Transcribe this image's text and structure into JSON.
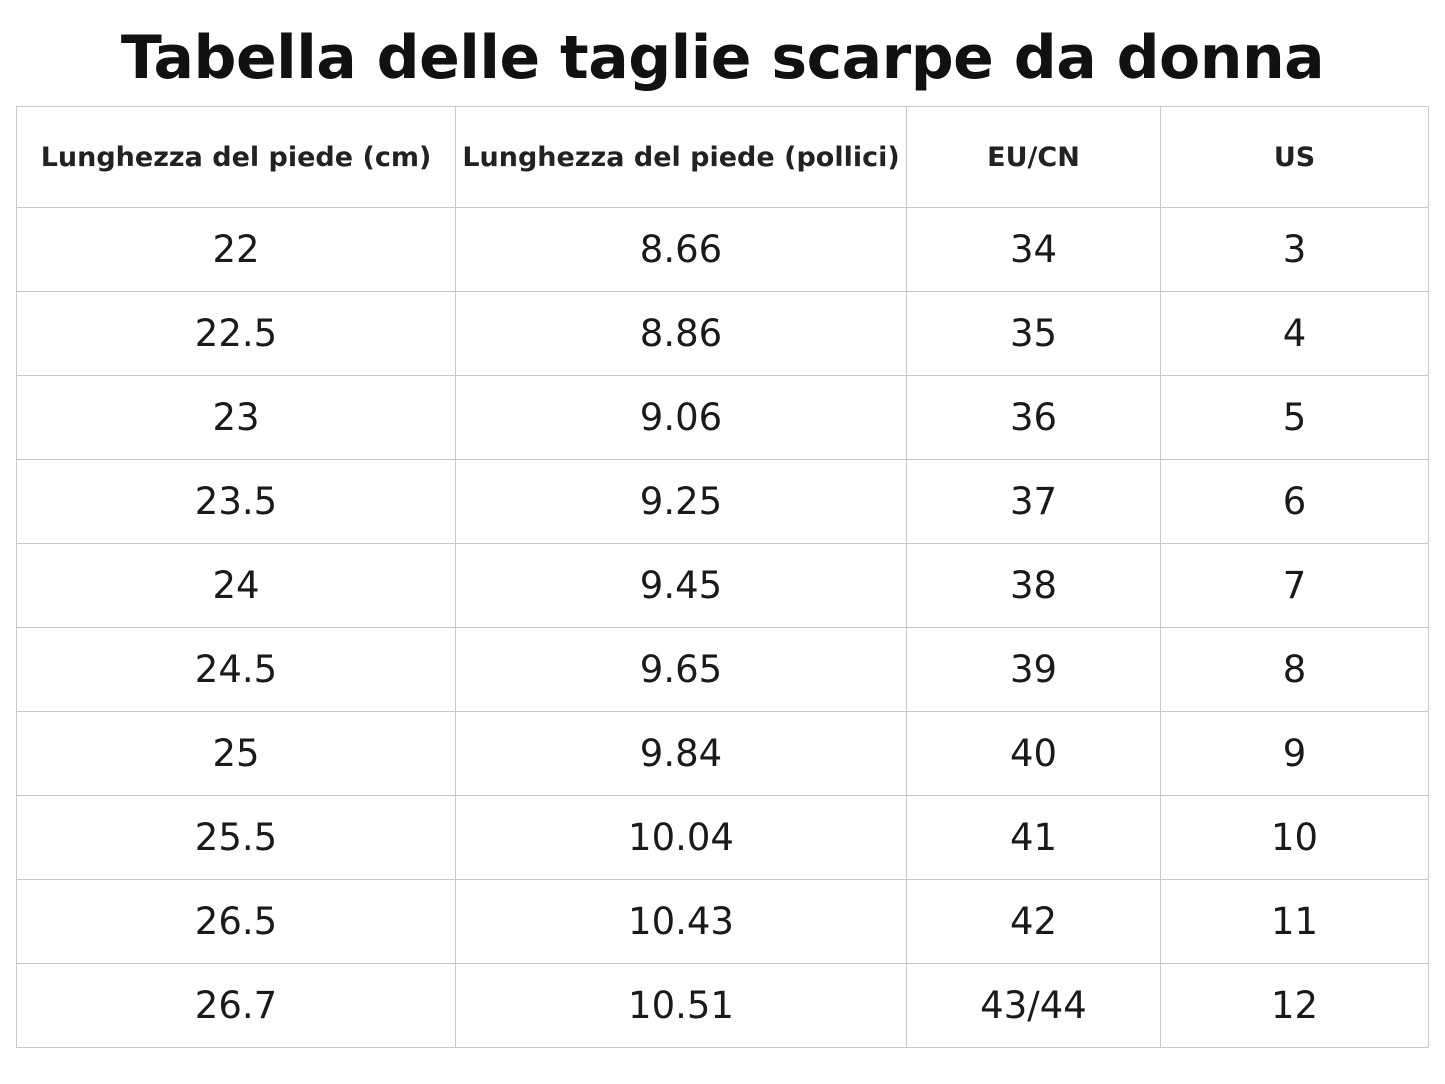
{
  "header": {
    "title": "Tabella delle taglie scarpe da donna"
  },
  "table": {
    "columns": [
      "Lunghezza del piede (cm)",
      "Lunghezza del piede (pollici)",
      "EU/CN",
      "US"
    ],
    "rows": [
      [
        "22",
        "8.66",
        "34",
        "3"
      ],
      [
        "22.5",
        "8.86",
        "35",
        "4"
      ],
      [
        "23",
        "9.06",
        "36",
        "5"
      ],
      [
        "23.5",
        "9.25",
        "37",
        "6"
      ],
      [
        "24",
        "9.45",
        "38",
        "7"
      ],
      [
        "24.5",
        "9.65",
        "39",
        "8"
      ],
      [
        "25",
        "9.84",
        "40",
        "9"
      ],
      [
        "25.5",
        "10.04",
        "41",
        "10"
      ],
      [
        "26.5",
        "10.43",
        "42",
        "11"
      ],
      [
        "26.7",
        "10.51",
        "43/44",
        "12"
      ]
    ]
  }
}
